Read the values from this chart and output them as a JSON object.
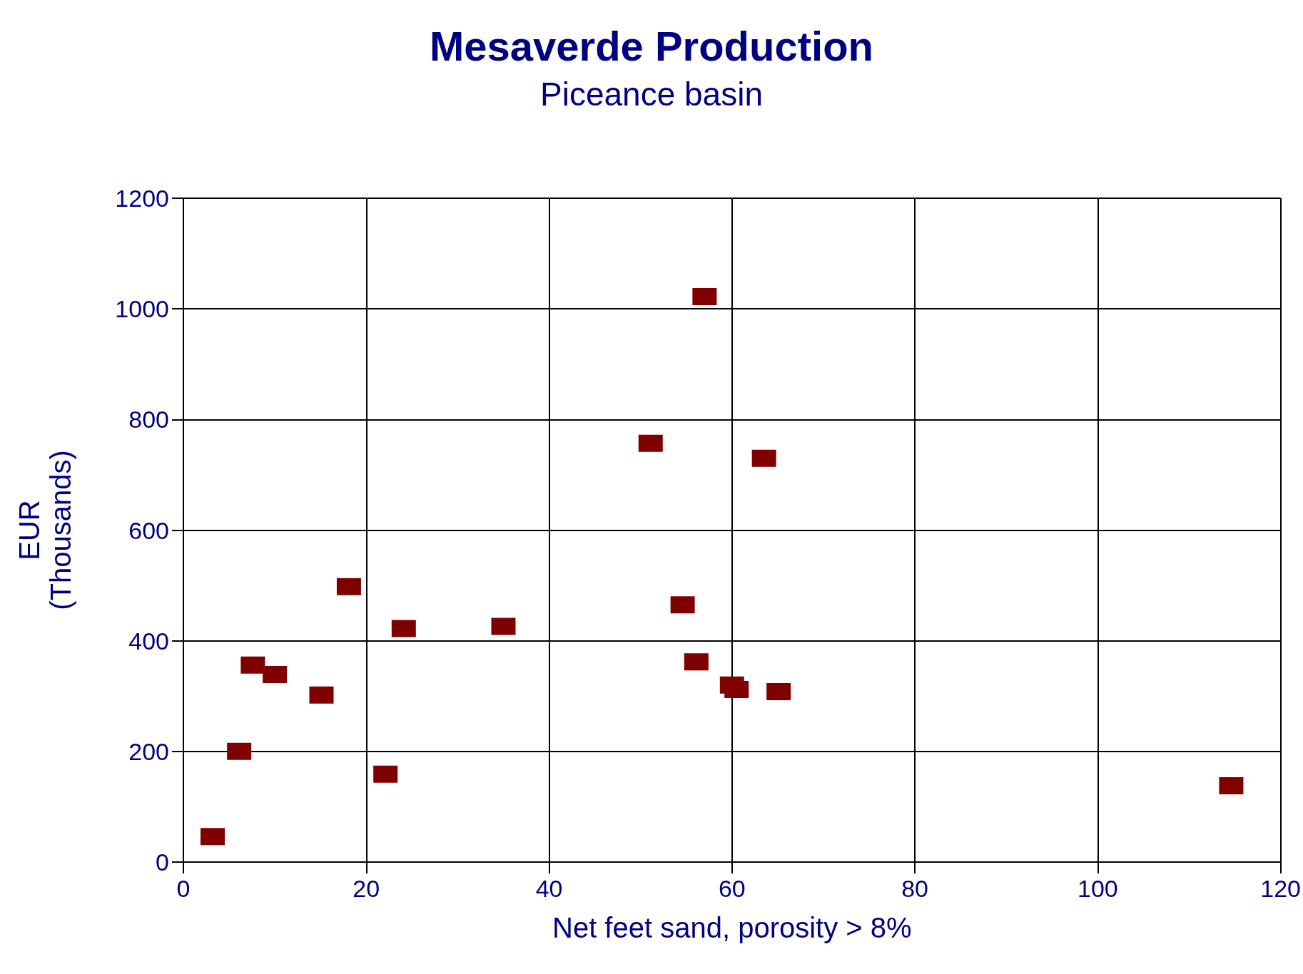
{
  "chart_data": {
    "type": "scatter",
    "title": "Mesaverde Production",
    "subtitle": "Piceance basin",
    "xlabel": "Net feet sand, porosity > 8%",
    "ylabel": "EUR\n(Thousands)",
    "x": [
      3.2,
      6.1,
      7.6,
      10.0,
      15.1,
      18.1,
      22.1,
      24.1,
      35.0,
      51.1,
      54.6,
      56.1,
      57.0,
      60.0,
      60.5,
      63.5,
      65.1,
      114.6
    ],
    "values": [
      46,
      200,
      356,
      339,
      302,
      498,
      159,
      422,
      426,
      757,
      465,
      362,
      1022,
      320,
      312,
      730,
      308,
      138
    ],
    "color": "#800000",
    "marker": "square",
    "xlim": [
      0,
      120
    ],
    "xticks": [
      0,
      20,
      40,
      60,
      80,
      100,
      120
    ],
    "ylim": [
      0,
      1200
    ],
    "yticks": [
      0,
      200,
      400,
      600,
      800,
      1000,
      1200
    ],
    "grid": true
  }
}
